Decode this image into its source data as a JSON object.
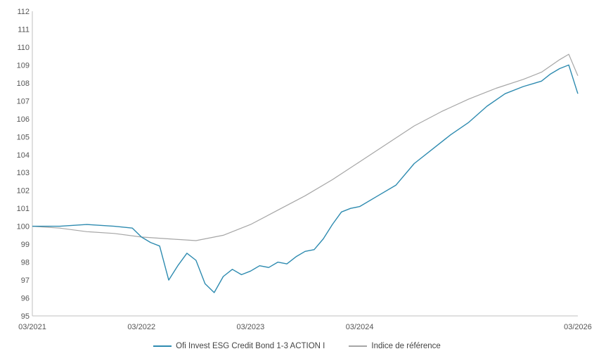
{
  "chart_data": {
    "type": "line",
    "title": "",
    "xlabel": "",
    "ylabel": "",
    "ylim": [
      95,
      112
    ],
    "y_ticks": [
      95,
      96,
      97,
      98,
      99,
      100,
      101,
      102,
      103,
      104,
      105,
      106,
      107,
      108,
      109,
      110,
      111,
      112
    ],
    "xlim": [
      "2021-03",
      "2026-03"
    ],
    "x_ticks": [
      "03/2021",
      "03/2022",
      "03/2023",
      "03/2024",
      "03/2026"
    ],
    "grid": false,
    "legend_position": "bottom",
    "series": [
      {
        "name": "Ofi Invest ESG Credit Bond 1-3 ACTION I",
        "color": "#2e8bb0",
        "points": [
          [
            "2021-03",
            100.0
          ],
          [
            "2021-06",
            100.0
          ],
          [
            "2021-09",
            100.1
          ],
          [
            "2021-12",
            100.0
          ],
          [
            "2022-02",
            99.9
          ],
          [
            "2022-03",
            99.4
          ],
          [
            "2022-04",
            99.1
          ],
          [
            "2022-05",
            98.9
          ],
          [
            "2022-06",
            97.0
          ],
          [
            "2022-07",
            97.8
          ],
          [
            "2022-08",
            98.5
          ],
          [
            "2022-09",
            98.1
          ],
          [
            "2022-10",
            96.8
          ],
          [
            "2022-11",
            96.3
          ],
          [
            "2022-12",
            97.2
          ],
          [
            "2023-01",
            97.6
          ],
          [
            "2023-02",
            97.3
          ],
          [
            "2023-03",
            97.5
          ],
          [
            "2023-04",
            97.8
          ],
          [
            "2023-05",
            97.7
          ],
          [
            "2023-06",
            98.0
          ],
          [
            "2023-07",
            97.9
          ],
          [
            "2023-08",
            98.3
          ],
          [
            "2023-09",
            98.6
          ],
          [
            "2023-10",
            98.7
          ],
          [
            "2023-11",
            99.3
          ],
          [
            "2023-12",
            100.1
          ],
          [
            "2024-01",
            100.8
          ],
          [
            "2024-02",
            101.0
          ],
          [
            "2024-03",
            101.1
          ],
          [
            "2024-05",
            101.7
          ],
          [
            "2024-07",
            102.3
          ],
          [
            "2024-09",
            103.5
          ],
          [
            "2024-11",
            104.3
          ],
          [
            "2025-01",
            105.1
          ],
          [
            "2025-03",
            105.8
          ],
          [
            "2025-05",
            106.7
          ],
          [
            "2025-07",
            107.4
          ],
          [
            "2025-09",
            107.8
          ],
          [
            "2025-11",
            108.1
          ],
          [
            "2025-12",
            108.5
          ],
          [
            "2026-01",
            108.8
          ],
          [
            "2026-02",
            109.0
          ],
          [
            "2026-03",
            107.4
          ]
        ]
      },
      {
        "name": "Indice de référence",
        "color": "#a6a6a6",
        "points": [
          [
            "2021-03",
            100.0
          ],
          [
            "2021-06",
            99.9
          ],
          [
            "2021-09",
            99.7
          ],
          [
            "2021-12",
            99.6
          ],
          [
            "2022-03",
            99.4
          ],
          [
            "2022-06",
            99.3
          ],
          [
            "2022-09",
            99.2
          ],
          [
            "2022-12",
            99.5
          ],
          [
            "2023-03",
            100.1
          ],
          [
            "2023-06",
            100.9
          ],
          [
            "2023-09",
            101.7
          ],
          [
            "2023-12",
            102.6
          ],
          [
            "2024-03",
            103.6
          ],
          [
            "2024-06",
            104.6
          ],
          [
            "2024-09",
            105.6
          ],
          [
            "2024-12",
            106.4
          ],
          [
            "2025-03",
            107.1
          ],
          [
            "2025-06",
            107.7
          ],
          [
            "2025-09",
            108.2
          ],
          [
            "2025-11",
            108.6
          ],
          [
            "2026-01",
            109.3
          ],
          [
            "2026-02",
            109.6
          ],
          [
            "2026-03",
            108.4
          ]
        ]
      }
    ]
  }
}
